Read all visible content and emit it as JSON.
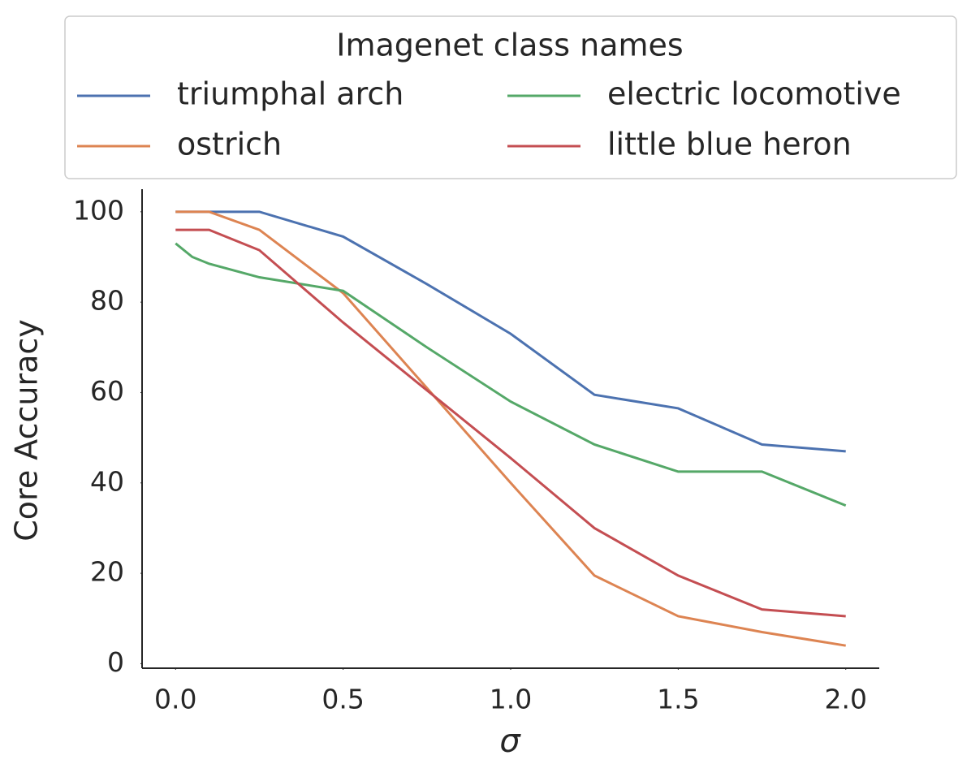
{
  "chart_data": {
    "type": "line",
    "xlabel": "σ",
    "ylabel": "Core Accuracy",
    "legend_title": "Imagenet class names",
    "legend": "top",
    "x": [
      0,
      0.05,
      0.1,
      0.25,
      0.5,
      0.75,
      1.0,
      1.25,
      1.5,
      1.75,
      2.0
    ],
    "series": [
      {
        "name": "triumphal arch",
        "color": "#4c72b0",
        "values": [
          100,
          100,
          100,
          100,
          94.5,
          84,
          73,
          59.5,
          56.5,
          48.5,
          47
        ]
      },
      {
        "name": "ostrich",
        "color": "#dd8452",
        "values": [
          100,
          100,
          100,
          96,
          82,
          61,
          40,
          19.5,
          10.5,
          7,
          4
        ]
      },
      {
        "name": "electric locomotive",
        "color": "#55a868",
        "values": [
          93,
          90,
          88.5,
          85.5,
          82.5,
          70,
          58,
          48.5,
          42.5,
          42.5,
          35
        ]
      },
      {
        "name": "little blue heron",
        "color": "#c44e52",
        "values": [
          96,
          96,
          96,
          91.5,
          75.5,
          60.5,
          45.5,
          30,
          19.5,
          12,
          10.5
        ]
      }
    ],
    "xlim": [
      -0.1,
      2.1
    ],
    "ylim": [
      -1,
      105
    ],
    "xticks": [
      {
        "value": 0,
        "label": "0.0"
      },
      0.5,
      {
        "value": 1,
        "label": "1.0"
      },
      1.5,
      {
        "value": 2,
        "label": "2.0"
      }
    ],
    "yticks": [
      0,
      20,
      40,
      60,
      80,
      100
    ]
  }
}
